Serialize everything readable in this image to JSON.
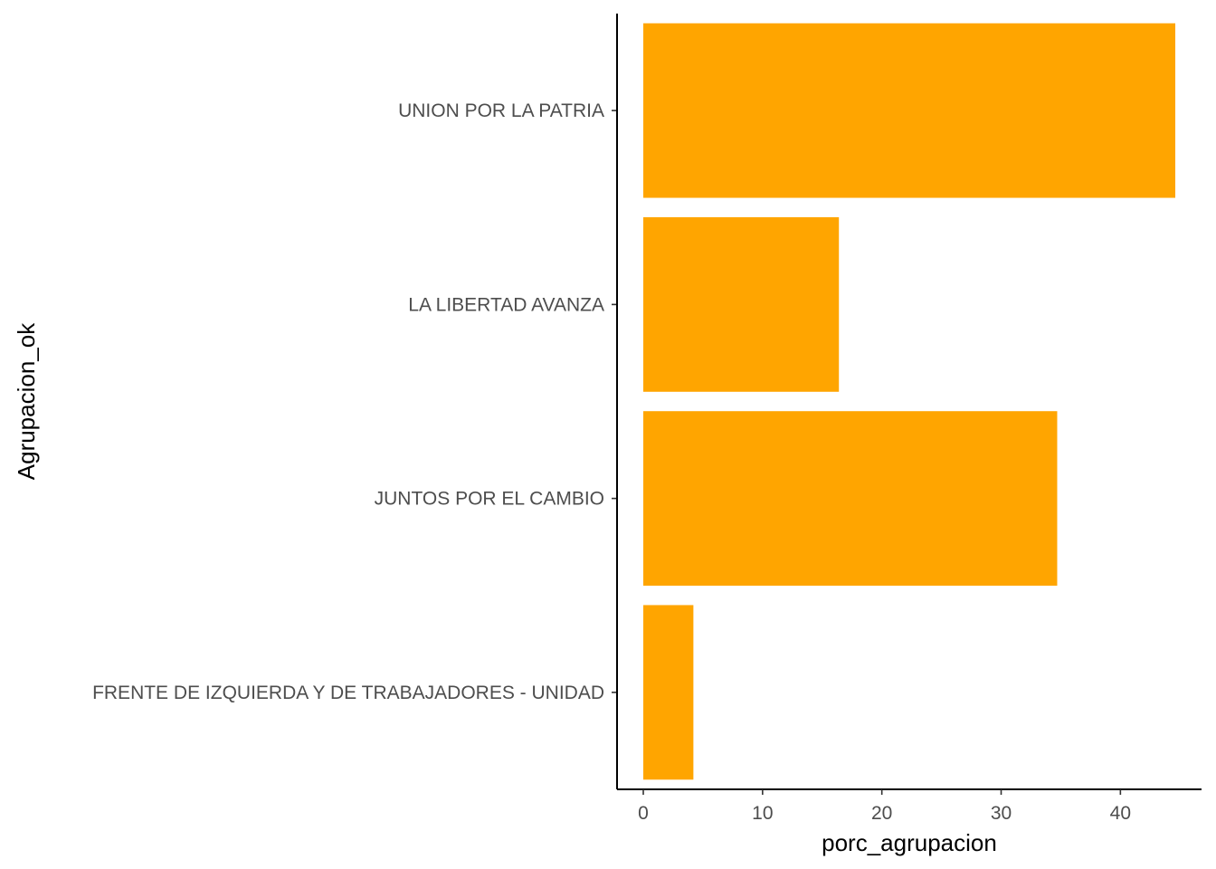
{
  "chart_data": {
    "type": "bar",
    "orientation": "horizontal",
    "xlabel": "porc_agrupacion",
    "ylabel": "Agrupacion_ok",
    "categories": [
      "UNION POR LA PATRIA",
      "LA LIBERTAD AVANZA",
      "JUNTOS POR EL CAMBIO",
      "FRENTE DE IZQUIERDA Y DE TRABAJADORES - UNIDAD"
    ],
    "values": [
      44.6,
      16.4,
      34.7,
      4.2
    ],
    "x_ticks": [
      0,
      10,
      20,
      30,
      40
    ],
    "xlim": [
      -2.2,
      46.8
    ],
    "bar_color": "#FFA500",
    "grid": false,
    "legend": "none"
  }
}
